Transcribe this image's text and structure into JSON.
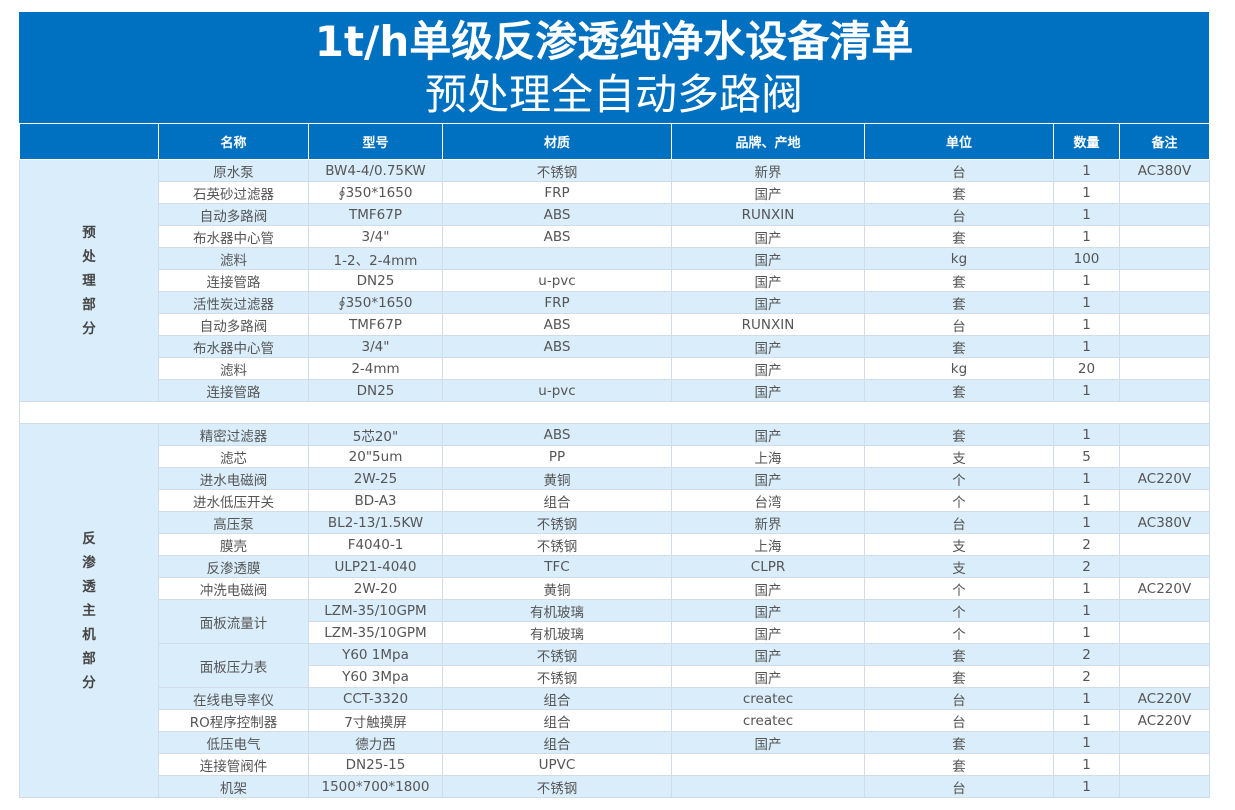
{
  "title": {
    "line1": "1t/h单级反渗透纯净水设备清单",
    "line2": "预处理全自动多路阀"
  },
  "colors": {
    "header": "#0070c0",
    "row_alt": "#daedfb"
  },
  "columns": [
    "",
    "名称",
    "型号",
    "材质",
    "品牌、产地",
    "单位",
    "数量",
    "备注"
  ],
  "sections": [
    {
      "label": "预处理部分",
      "rows": [
        {
          "name": "原水泵",
          "model": "BW4-4/0.75KW",
          "material": "不锈钢",
          "brand": "新界",
          "unit": "台",
          "qty": "1",
          "note": "AC380V"
        },
        {
          "name": "石英砂过滤器",
          "model": "∮350*1650",
          "material": "FRP",
          "brand": "国产",
          "unit": "套",
          "qty": "1",
          "note": ""
        },
        {
          "name": "自动多路阀",
          "model": "TMF67P",
          "material": "ABS",
          "brand": "RUNXIN",
          "unit": "台",
          "qty": "1",
          "note": ""
        },
        {
          "name": "布水器中心管",
          "model": "3/4\"",
          "material": "ABS",
          "brand": "国产",
          "unit": "套",
          "qty": "1",
          "note": ""
        },
        {
          "name": "滤料",
          "model": "1-2、2-4mm",
          "material": "",
          "brand": "国产",
          "unit": "kg",
          "qty": "100",
          "note": ""
        },
        {
          "name": "连接管路",
          "model": "DN25",
          "material": "u-pvc",
          "brand": "国产",
          "unit": "套",
          "qty": "1",
          "note": ""
        },
        {
          "name": "活性炭过滤器",
          "model": "∮350*1650",
          "material": "FRP",
          "brand": "国产",
          "unit": "套",
          "qty": "1",
          "note": ""
        },
        {
          "name": "自动多路阀",
          "model": "TMF67P",
          "material": "ABS",
          "brand": "RUNXIN",
          "unit": "台",
          "qty": "1",
          "note": ""
        },
        {
          "name": "布水器中心管",
          "model": "3/4\"",
          "material": "ABS",
          "brand": "国产",
          "unit": "套",
          "qty": "1",
          "note": ""
        },
        {
          "name": "滤料",
          "model": "2-4mm",
          "material": "",
          "brand": "国产",
          "unit": "kg",
          "qty": "20",
          "note": ""
        },
        {
          "name": "连接管路",
          "model": "DN25",
          "material": "u-pvc",
          "brand": "国产",
          "unit": "套",
          "qty": "1",
          "note": ""
        }
      ]
    },
    {
      "label": "反渗透主机部分",
      "rows": [
        {
          "name": "精密过滤器",
          "model": "5芯20\"",
          "material": "ABS",
          "brand": "国产",
          "unit": "套",
          "qty": "1",
          "note": ""
        },
        {
          "name": "滤芯",
          "model": "20\"5um",
          "material": "PP",
          "brand": "上海",
          "unit": "支",
          "qty": "5",
          "note": ""
        },
        {
          "name": "进水电磁阀",
          "model": "2W-25",
          "material": "黄铜",
          "brand": "国产",
          "unit": "个",
          "qty": "1",
          "note": "AC220V"
        },
        {
          "name": "进水低压开关",
          "model": "BD-A3",
          "material": "组合",
          "brand": "台湾",
          "unit": "个",
          "qty": "1",
          "note": ""
        },
        {
          "name": "高压泵",
          "model": "BL2-13/1.5KW",
          "material": "不锈钢",
          "brand": "新界",
          "unit": "台",
          "qty": "1",
          "note": "AC380V"
        },
        {
          "name": "膜壳",
          "model": "F4040-1",
          "material": "不锈钢",
          "brand": "上海",
          "unit": "支",
          "qty": "2",
          "note": ""
        },
        {
          "name": "反渗透膜",
          "model": "ULP21-4040",
          "material": "TFC",
          "brand": "CLPR",
          "unit": "支",
          "qty": "2",
          "note": ""
        },
        {
          "name": "冲洗电磁阀",
          "model": "2W-20",
          "material": "黄铜",
          "brand": "国产",
          "unit": "个",
          "qty": "1",
          "note": "AC220V"
        },
        {
          "name": "面板流量计",
          "span": 2,
          "model": "LZM-35/10GPM",
          "material": "有机玻璃",
          "brand": "国产",
          "unit": "个",
          "qty": "1",
          "note": ""
        },
        {
          "model": "LZM-35/10GPM",
          "material": "有机玻璃",
          "brand": "国产",
          "unit": "个",
          "qty": "1",
          "note": ""
        },
        {
          "name": "面板压力表",
          "span": 2,
          "model": "Y60 1Mpa",
          "material": "不锈钢",
          "brand": "国产",
          "unit": "套",
          "qty": "2",
          "note": ""
        },
        {
          "model": "Y60 3Mpa",
          "material": "不锈钢",
          "brand": "国产",
          "unit": "套",
          "qty": "2",
          "note": ""
        },
        {
          "name": "在线电导率仪",
          "model": "CCT-3320",
          "material": "组合",
          "brand": "createc",
          "unit": "台",
          "qty": "1",
          "note": "AC220V"
        },
        {
          "name": "RO程序控制器",
          "model": "7寸触摸屏",
          "material": "组合",
          "brand": "createc",
          "unit": "台",
          "qty": "1",
          "note": "AC220V"
        },
        {
          "name": "低压电气",
          "model": "德力西",
          "material": "组合",
          "brand": "国产",
          "unit": "套",
          "qty": "1",
          "note": ""
        },
        {
          "name": "连接管阀件",
          "model": "DN25-15",
          "material": "UPVC",
          "brand": "",
          "unit": "套",
          "qty": "1",
          "note": ""
        },
        {
          "name": "机架",
          "model": "1500*700*1800",
          "material": "不锈钢",
          "brand": "",
          "unit": "台",
          "qty": "1",
          "note": ""
        }
      ]
    }
  ]
}
